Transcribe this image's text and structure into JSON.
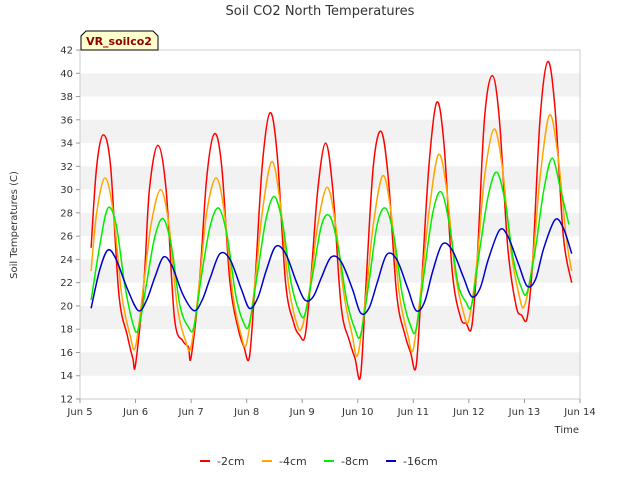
{
  "chart_data": {
    "type": "line",
    "title": "Soil CO2 North Temperatures",
    "xlabel": "Time",
    "ylabel": "Soil Temperatures (C)",
    "badge": "VR_soilco2",
    "x_ticks": [
      "Jun 5",
      "Jun 6",
      "Jun 7",
      "Jun 8",
      "Jun 9",
      "Jun 10",
      "Jun 11",
      "Jun 12",
      "Jun 13",
      "Jun 14"
    ],
    "x_range_days": [
      5,
      14
    ],
    "y_ticks": [
      12,
      14,
      16,
      18,
      20,
      22,
      24,
      26,
      28,
      30,
      32,
      34,
      36,
      38,
      40,
      42
    ],
    "ylim": [
      12,
      42
    ],
    "grid": "horizontal bands",
    "legend": "bottom",
    "series": [
      {
        "name": "-2cm",
        "color": "#ff0000",
        "x": [
          5.2,
          5.3,
          5.42,
          5.55,
          5.7,
          5.85,
          5.95,
          6.0,
          6.15,
          6.25,
          6.4,
          6.55,
          6.7,
          6.85,
          6.95,
          7.0,
          7.15,
          7.28,
          7.42,
          7.55,
          7.7,
          7.85,
          7.95,
          8.05,
          8.15,
          8.28,
          8.42,
          8.55,
          8.7,
          8.85,
          8.95,
          9.05,
          9.15,
          9.28,
          9.42,
          9.55,
          9.7,
          9.85,
          9.95,
          10.05,
          10.15,
          10.28,
          10.42,
          10.55,
          10.7,
          10.85,
          10.95,
          11.05,
          11.15,
          11.28,
          11.42,
          11.55,
          11.7,
          11.85,
          11.95,
          12.05,
          12.15,
          12.28,
          12.42,
          12.55,
          12.7,
          12.85,
          12.95,
          13.05,
          13.15,
          13.28,
          13.42,
          13.55,
          13.7,
          13.85
        ],
        "values": [
          25,
          32,
          34.7,
          32,
          21,
          17.5,
          15.5,
          15,
          22,
          30,
          33.8,
          30,
          19,
          17,
          16.5,
          15.6,
          22,
          31,
          34.8,
          32,
          22,
          18,
          16.5,
          15.6,
          22,
          32,
          36.6,
          33,
          22,
          18.5,
          17.5,
          17.4,
          22,
          30,
          34,
          30,
          20,
          17,
          15.5,
          14,
          22,
          32,
          35,
          31,
          21,
          17.5,
          16,
          14.8,
          22,
          32,
          37.5,
          34,
          23,
          19,
          18.5,
          18.2,
          24,
          36,
          39.8,
          36,
          25,
          20,
          19.2,
          19,
          24,
          36,
          41,
          37,
          26,
          22
        ]
      },
      {
        "name": "-4cm",
        "color": "#ffa500",
        "x": [
          5.2,
          5.3,
          5.45,
          5.6,
          5.75,
          5.9,
          6.0,
          6.15,
          6.28,
          6.45,
          6.6,
          6.75,
          6.9,
          7.0,
          7.15,
          7.28,
          7.45,
          7.6,
          7.75,
          7.9,
          8.0,
          8.15,
          8.28,
          8.45,
          8.6,
          8.75,
          8.9,
          9.0,
          9.15,
          9.28,
          9.45,
          9.6,
          9.75,
          9.9,
          10.0,
          10.15,
          10.28,
          10.45,
          10.6,
          10.75,
          10.9,
          11.0,
          11.15,
          11.28,
          11.45,
          11.6,
          11.75,
          11.9,
          12.0,
          12.15,
          12.28,
          12.45,
          12.6,
          12.75,
          12.9,
          13.0,
          13.15,
          13.28,
          13.45,
          13.6,
          13.75,
          13.85
        ],
        "values": [
          23,
          28,
          31,
          28,
          21,
          17.5,
          16.5,
          22,
          27,
          30,
          27,
          20,
          17,
          16.5,
          22,
          28,
          31,
          28,
          21,
          17.5,
          16.8,
          22,
          28,
          32.4,
          29,
          22,
          18.5,
          18.2,
          22,
          27,
          30.2,
          27,
          21,
          17.5,
          15.8,
          21,
          27,
          31.2,
          28,
          21,
          17.5,
          16.3,
          22,
          28,
          33,
          30,
          23,
          19.5,
          18.8,
          24,
          31,
          35.2,
          32,
          25,
          21,
          20,
          24,
          31,
          36.4,
          33,
          26,
          23
        ]
      },
      {
        "name": "-8cm",
        "color": "#00ee00",
        "x": [
          5.2,
          5.35,
          5.5,
          5.65,
          5.8,
          5.95,
          6.05,
          6.2,
          6.35,
          6.5,
          6.65,
          6.8,
          6.95,
          7.05,
          7.2,
          7.35,
          7.5,
          7.65,
          7.8,
          7.95,
          8.05,
          8.2,
          8.35,
          8.5,
          8.65,
          8.8,
          8.95,
          9.05,
          9.2,
          9.35,
          9.5,
          9.65,
          9.8,
          9.95,
          10.05,
          10.2,
          10.35,
          10.5,
          10.65,
          10.8,
          10.95,
          11.05,
          11.2,
          11.35,
          11.5,
          11.65,
          11.8,
          11.95,
          12.05,
          12.2,
          12.35,
          12.5,
          12.65,
          12.8,
          12.95,
          13.05,
          13.2,
          13.35,
          13.5,
          13.65,
          13.8
        ],
        "values": [
          20.5,
          25,
          28.4,
          27,
          22,
          18.5,
          18,
          22,
          26,
          27.5,
          25,
          20,
          18.2,
          18.2,
          23,
          27,
          28.4,
          26,
          21,
          18.5,
          18.5,
          23,
          27.5,
          29.4,
          27,
          22,
          19.5,
          19.3,
          23,
          27,
          27.7,
          25,
          20.5,
          18,
          17.5,
          22,
          27,
          28.4,
          26,
          21,
          18.3,
          18,
          23,
          28,
          29.8,
          27,
          22,
          20.3,
          20.1,
          25,
          29.5,
          31.5,
          29,
          24,
          21.5,
          21.2,
          25,
          30,
          32.7,
          30,
          27
        ]
      },
      {
        "name": "-16cm",
        "color": "#0000cc",
        "x": [
          5.2,
          5.35,
          5.5,
          5.65,
          5.85,
          6.05,
          6.2,
          6.35,
          6.5,
          6.65,
          6.85,
          7.05,
          7.2,
          7.35,
          7.52,
          7.7,
          7.9,
          8.05,
          8.2,
          8.35,
          8.52,
          8.7,
          8.9,
          9.05,
          9.2,
          9.35,
          9.52,
          9.7,
          9.9,
          10.05,
          10.2,
          10.35,
          10.52,
          10.7,
          10.9,
          11.05,
          11.2,
          11.35,
          11.52,
          11.7,
          11.9,
          12.05,
          12.2,
          12.35,
          12.55,
          12.7,
          12.9,
          13.05,
          13.2,
          13.35,
          13.55,
          13.7,
          13.85
        ],
        "values": [
          19.8,
          23,
          24.8,
          24,
          21.5,
          19.6,
          20.5,
          22.5,
          24.2,
          23.5,
          21,
          19.6,
          20.5,
          22.5,
          24.5,
          24,
          21.5,
          19.8,
          20.7,
          23,
          25.1,
          24.5,
          22,
          20.5,
          20.8,
          22.5,
          24.2,
          23.8,
          21.5,
          19.4,
          19.8,
          22,
          24.4,
          24,
          21.5,
          19.6,
          20.3,
          23,
          25.3,
          24.8,
          22.5,
          20.8,
          21.5,
          24,
          26.5,
          26,
          23.5,
          21.7,
          22.3,
          25,
          27.4,
          26.7,
          24.5
        ]
      }
    ]
  }
}
